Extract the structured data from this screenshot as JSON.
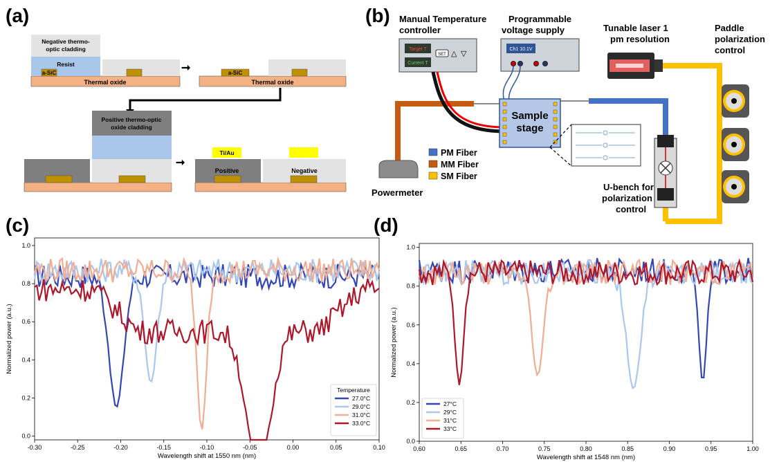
{
  "panels": {
    "a": "(a)",
    "b": "(b)",
    "c": "(c)",
    "d": "(d)"
  },
  "panel_a": {
    "neg_cladding": "Negative thermo-optic cladding",
    "resist": "Resist",
    "asic": "a-SiC",
    "thermal_oxide": "Thermal oxide",
    "pos_cladding": "Positive thermo-optic oxide cladding",
    "tiau": "Ti/Au",
    "positive": "Positive",
    "negative": "Negative"
  },
  "panel_b": {
    "temp_controller": "Manual Temperature controller",
    "target_t": "Target T",
    "current_t": "Current T",
    "set": "SET",
    "voltage_supply": "Programmable voltage supply",
    "ch1": "Ch1 10.1V",
    "laser": "Tunable laser 1 pm resolution",
    "paddle": "Paddle polarization control",
    "sample_stage": "Sample stage",
    "pm_fiber": "PM Fiber",
    "mm_fiber": "MM Fiber",
    "sm_fiber": "SM Fiber",
    "powermeter": "Powermeter",
    "ubench": "U-bench for polarization control",
    "colors": {
      "pm": "#4472c4",
      "mm": "#c55a11",
      "sm": "#ffc000"
    }
  },
  "chart_data": [
    {
      "type": "line",
      "xlabel": "Wavelength shift at 1550 nm (nm)",
      "ylabel": "Normalized power (a.u.)",
      "xlim": [
        -0.3,
        0.1
      ],
      "ylim": [
        -0.02,
        1.04
      ],
      "xticks": [
        "-0.30",
        "-0.25",
        "-0.20",
        "-0.15",
        "-0.10",
        "-0.05",
        "0.00",
        "0.05",
        "0.10"
      ],
      "yticks": [
        "0.0",
        "0.2",
        "0.4",
        "0.6",
        "0.8",
        "1.0"
      ],
      "legend_title": "Temperature",
      "legend_position": "lower-right",
      "series": [
        {
          "name": "27.0°C",
          "color": "#3346b5",
          "baseline": 0.84,
          "min_x": -0.205,
          "min_y": 0.15,
          "width": 0.012,
          "range": [
            -0.3,
            0.1
          ]
        },
        {
          "name": "29.0°C",
          "color": "#a9c7ef",
          "baseline": 0.87,
          "min_x": -0.165,
          "min_y": 0.28,
          "width": 0.01,
          "range": [
            -0.3,
            0.1
          ]
        },
        {
          "name": "31.0°C",
          "color": "#f1ad92",
          "baseline": 0.87,
          "min_x": -0.106,
          "min_y": 0.03,
          "width": 0.008,
          "range": [
            -0.3,
            0.1
          ]
        },
        {
          "name": "33.0°C",
          "color": "#ae1629",
          "baseline": 0.77,
          "min_x": -0.04,
          "min_y": 0.03,
          "width": 0.02,
          "range": [
            -0.3,
            0.1
          ]
        }
      ]
    },
    {
      "type": "line",
      "xlabel": "Wavelength shift at 1548 nm (nm)",
      "ylabel": "Normalized power (a.u.)",
      "xlim": [
        0.6,
        1.0
      ],
      "ylim": [
        0.0,
        1.02
      ],
      "xticks": [
        "0.60",
        "0.65",
        "0.70",
        "0.75",
        "0.80",
        "0.85",
        "0.90",
        "0.95",
        "1.00"
      ],
      "yticks": [
        "0.0",
        "0.2",
        "0.4",
        "0.6",
        "0.8",
        "1.0"
      ],
      "legend_position": "lower-left",
      "series": [
        {
          "name": "27°C",
          "color": "#3346b5",
          "baseline": 0.88,
          "min_x": 0.94,
          "min_y": 0.31,
          "width": 0.007,
          "range": [
            0.6,
            1.0
          ]
        },
        {
          "name": "29°C",
          "color": "#a9c7ef",
          "baseline": 0.87,
          "min_x": 0.857,
          "min_y": 0.27,
          "width": 0.012,
          "range": [
            0.6,
            1.0
          ]
        },
        {
          "name": "31°C",
          "color": "#f1ad92",
          "baseline": 0.87,
          "min_x": 0.742,
          "min_y": 0.34,
          "width": 0.01,
          "range": [
            0.6,
            1.0
          ]
        },
        {
          "name": "33°C",
          "color": "#ae1629",
          "baseline": 0.87,
          "min_x": 0.648,
          "min_y": 0.29,
          "width": 0.007,
          "range": [
            0.6,
            1.0
          ]
        }
      ]
    }
  ]
}
